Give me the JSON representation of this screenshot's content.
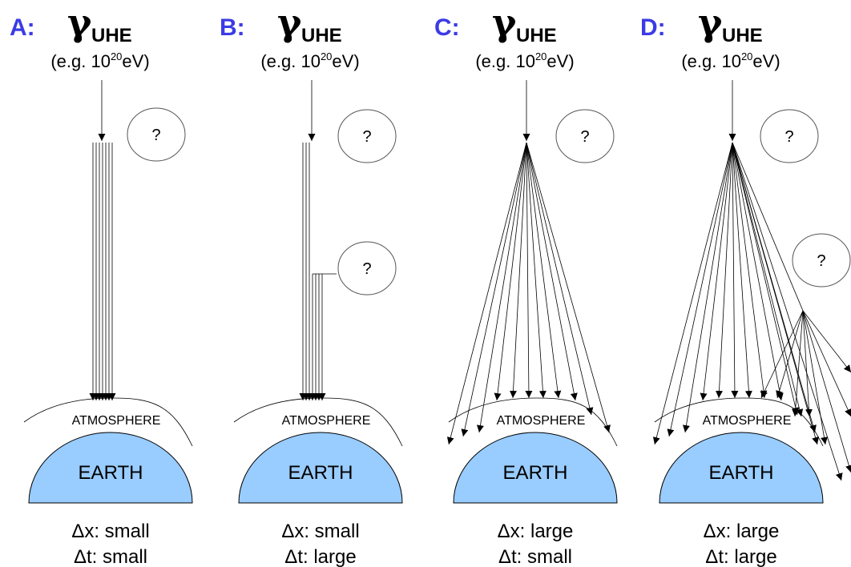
{
  "panels": [
    {
      "label": "A:",
      "particle": "γ",
      "subscript": "UHE",
      "energy": {
        "prefix": "(e.g. 10",
        "exponent": "20",
        "suffix": "eV)"
      },
      "unknowns": [
        "?"
      ],
      "atmosphere": "ATMOSPHERE",
      "earth": "EARTH",
      "dx": "Δx: small",
      "dt": "Δt: small"
    },
    {
      "label": "B:",
      "particle": "γ",
      "subscript": "UHE",
      "energy": {
        "prefix": "(e.g. 10",
        "exponent": "20",
        "suffix": "eV)"
      },
      "unknowns": [
        "?",
        "?"
      ],
      "atmosphere": "ATMOSPHERE",
      "earth": "EARTH",
      "dx": "Δx: small",
      "dt": "Δt: large"
    },
    {
      "label": "C:",
      "particle": "γ",
      "subscript": "UHE",
      "energy": {
        "prefix": "(e.g. 10",
        "exponent": "20",
        "suffix": "eV)"
      },
      "unknowns": [
        "?"
      ],
      "atmosphere": "ATMOSPHERE",
      "earth": "EARTH",
      "dx": "Δx: large",
      "dt": "Δt: small"
    },
    {
      "label": "D:",
      "particle": "γ",
      "subscript": "UHE",
      "energy": {
        "prefix": "(e.g. 10",
        "exponent": "20",
        "suffix": "eV)"
      },
      "unknowns": [
        "?",
        "?"
      ],
      "atmosphere": "ATMOSPHERE",
      "earth": "EARTH",
      "dx": "Δx: large",
      "dt": "Δt: large"
    }
  ]
}
